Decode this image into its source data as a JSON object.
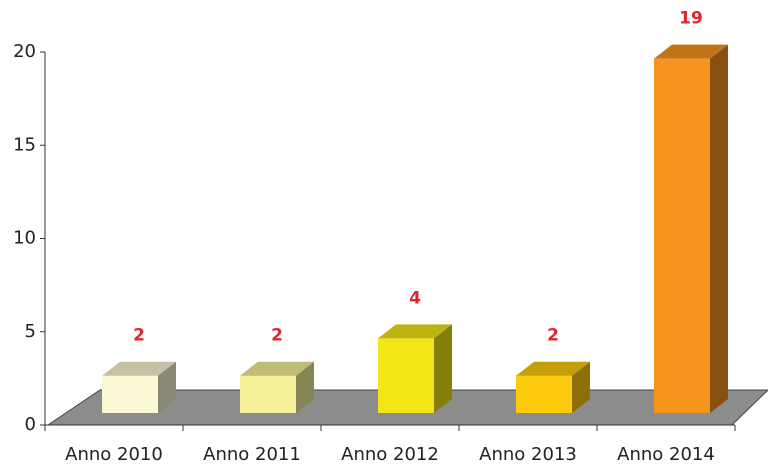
{
  "chart_data": {
    "type": "bar3d",
    "categories": [
      "Anno 2010",
      "Anno 2011",
      "Anno 2012",
      "Anno 2013",
      "Anno 2014"
    ],
    "values": [
      2,
      2,
      4,
      2,
      19
    ],
    "colors": [
      "#fbf8d4",
      "#f6f19a",
      "#f2e616",
      "#fccb0c",
      "#f7941e"
    ],
    "ylim": [
      0,
      20
    ],
    "yticks": [
      0,
      5,
      10,
      15,
      20
    ]
  }
}
